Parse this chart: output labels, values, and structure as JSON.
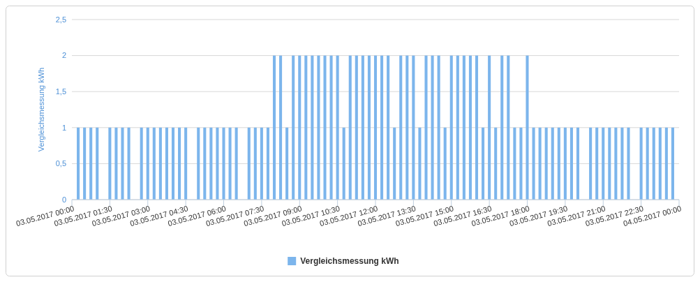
{
  "chart_data": {
    "type": "bar",
    "ylabel": "Vergleichsmessung kWh",
    "x": [
      "2017-05-03T00:15",
      "2017-05-03T00:30",
      "2017-05-03T00:45",
      "2017-05-03T01:00",
      "2017-05-03T01:15",
      "2017-05-03T01:30",
      "2017-05-03T01:45",
      "2017-05-03T02:00",
      "2017-05-03T02:15",
      "2017-05-03T02:30",
      "2017-05-03T02:45",
      "2017-05-03T03:00",
      "2017-05-03T03:15",
      "2017-05-03T03:30",
      "2017-05-03T03:45",
      "2017-05-03T04:00",
      "2017-05-03T04:15",
      "2017-05-03T04:30",
      "2017-05-03T04:45",
      "2017-05-03T05:00",
      "2017-05-03T05:15",
      "2017-05-03T05:30",
      "2017-05-03T05:45",
      "2017-05-03T06:00",
      "2017-05-03T06:15",
      "2017-05-03T06:30",
      "2017-05-03T06:45",
      "2017-05-03T07:00",
      "2017-05-03T07:15",
      "2017-05-03T07:30",
      "2017-05-03T07:45",
      "2017-05-03T08:00",
      "2017-05-03T08:15",
      "2017-05-03T08:30",
      "2017-05-03T08:45",
      "2017-05-03T09:00",
      "2017-05-03T09:15",
      "2017-05-03T09:30",
      "2017-05-03T09:45",
      "2017-05-03T10:00",
      "2017-05-03T10:15",
      "2017-05-03T10:30",
      "2017-05-03T10:45",
      "2017-05-03T11:00",
      "2017-05-03T11:15",
      "2017-05-03T11:30",
      "2017-05-03T11:45",
      "2017-05-03T12:00",
      "2017-05-03T12:15",
      "2017-05-03T12:30",
      "2017-05-03T12:45",
      "2017-05-03T13:00",
      "2017-05-03T13:15",
      "2017-05-03T13:30",
      "2017-05-03T13:45",
      "2017-05-03T14:00",
      "2017-05-03T14:15",
      "2017-05-03T14:30",
      "2017-05-03T14:45",
      "2017-05-03T15:00",
      "2017-05-03T15:15",
      "2017-05-03T15:30",
      "2017-05-03T15:45",
      "2017-05-03T16:00",
      "2017-05-03T16:15",
      "2017-05-03T16:30",
      "2017-05-03T16:45",
      "2017-05-03T17:00",
      "2017-05-03T17:15",
      "2017-05-03T17:30",
      "2017-05-03T17:45",
      "2017-05-03T18:00",
      "2017-05-03T18:15",
      "2017-05-03T18:30",
      "2017-05-03T18:45",
      "2017-05-03T19:00",
      "2017-05-03T19:15",
      "2017-05-03T19:30",
      "2017-05-03T19:45",
      "2017-05-03T20:00",
      "2017-05-03T20:15",
      "2017-05-03T20:30",
      "2017-05-03T20:45",
      "2017-05-03T21:00",
      "2017-05-03T21:15",
      "2017-05-03T21:30",
      "2017-05-03T21:45",
      "2017-05-03T22:00",
      "2017-05-03T22:15",
      "2017-05-03T22:30",
      "2017-05-03T22:45",
      "2017-05-03T23:00",
      "2017-05-03T23:15",
      "2017-05-03T23:30",
      "2017-05-03T23:45"
    ],
    "series": [
      {
        "name": "Vergleichsmessung kWh",
        "color": "#7cb5ec",
        "values": [
          1,
          1,
          1,
          1,
          0,
          1,
          1,
          1,
          1,
          0,
          1,
          1,
          1,
          1,
          1,
          1,
          1,
          1,
          0,
          1,
          1,
          1,
          1,
          1,
          1,
          1,
          0,
          1,
          1,
          1,
          1,
          2,
          2,
          1,
          2,
          2,
          2,
          2,
          2,
          2,
          2,
          2,
          1,
          2,
          2,
          2,
          2,
          2,
          2,
          2,
          1,
          2,
          2,
          2,
          1,
          2,
          2,
          2,
          1,
          2,
          2,
          2,
          2,
          2,
          1,
          2,
          1,
          2,
          2,
          1,
          1,
          2,
          1,
          1,
          1,
          1,
          1,
          1,
          1,
          1,
          0,
          1,
          1,
          1,
          1,
          1,
          1,
          1,
          0,
          1,
          1,
          1,
          1,
          1,
          1
        ]
      }
    ],
    "xlim": [
      "2017-05-03T00:00",
      "2017-05-04T00:00"
    ],
    "xticks": [
      {
        "value": "2017-05-03T00:00",
        "label": "03.05.2017 00:00"
      },
      {
        "value": "2017-05-03T01:30",
        "label": "03.05.2017 01:30"
      },
      {
        "value": "2017-05-03T03:00",
        "label": "03.05.2017 03:00"
      },
      {
        "value": "2017-05-03T04:30",
        "label": "03.05.2017 04:30"
      },
      {
        "value": "2017-05-03T06:00",
        "label": "03.05.2017 06:00"
      },
      {
        "value": "2017-05-03T07:30",
        "label": "03.05.2017 07:30"
      },
      {
        "value": "2017-05-03T09:00",
        "label": "03.05.2017 09:00"
      },
      {
        "value": "2017-05-03T10:30",
        "label": "03.05.2017 10:30"
      },
      {
        "value": "2017-05-03T12:00",
        "label": "03.05.2017 12:00"
      },
      {
        "value": "2017-05-03T13:30",
        "label": "03.05.2017 13:30"
      },
      {
        "value": "2017-05-03T15:00",
        "label": "03.05.2017 15:00"
      },
      {
        "value": "2017-05-03T16:30",
        "label": "03.05.2017 16:30"
      },
      {
        "value": "2017-05-03T18:00",
        "label": "03.05.2017 18:00"
      },
      {
        "value": "2017-05-03T19:30",
        "label": "03.05.2017 19:30"
      },
      {
        "value": "2017-05-03T21:00",
        "label": "03.05.2017 21:00"
      },
      {
        "value": "2017-05-03T22:30",
        "label": "03.05.2017 22:30"
      },
      {
        "value": "2017-05-04T00:00",
        "label": "04.05.2017 00:00"
      }
    ],
    "ylim": [
      0,
      2.5
    ],
    "yticks": [
      0,
      {
        "value": 0.5,
        "label": "0,5"
      },
      1,
      {
        "value": 1.5,
        "label": "1,5"
      },
      2,
      {
        "value": 2.5,
        "label": "2,5"
      }
    ],
    "grid": "y",
    "legend": "bottom"
  }
}
